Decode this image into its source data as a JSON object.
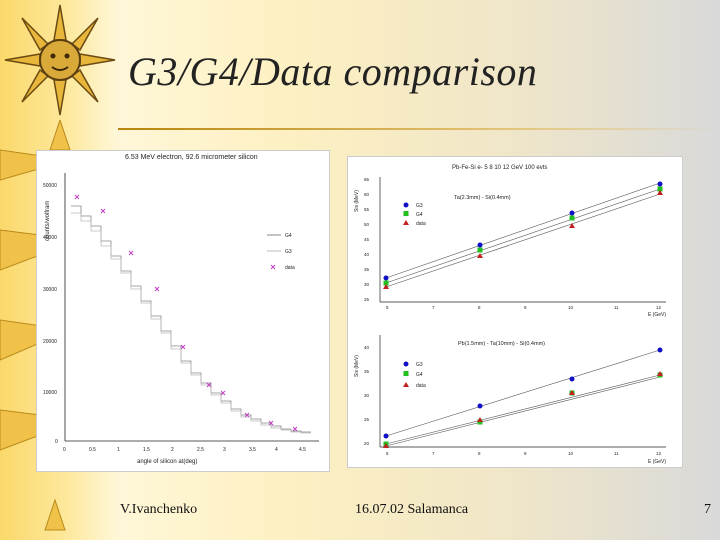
{
  "slide": {
    "title": "G3/G4/Data comparison",
    "author": "V.Ivanchenko",
    "date_place": "16.07.02 Salamanca",
    "page": "7"
  },
  "left_plot": {
    "title": "6.53 MeV electron, 92.6 micrometer silicon",
    "ylabel": "counts/wolfram",
    "xlabel": "angle of silicon at(deg)",
    "yticks": [
      "50000",
      "40000",
      "30000",
      "20000",
      "10000",
      "0"
    ],
    "xticks": [
      "0",
      "0.5",
      "1",
      "1.5",
      "2",
      "2.5",
      "3",
      "3.5",
      "4",
      "4.5"
    ],
    "legend": [
      "G4",
      "G3",
      "data"
    ]
  },
  "right_top": {
    "title": "Pb-Fe-Si  e- 5 8 10 12 GeV  100 evts",
    "subtitle": "Ta(2.3mm) - Si(0.4mm)",
    "ylabel": "Sis (MeV)",
    "xlabel": "E (GeV)",
    "legend": [
      "G3",
      "G4",
      "data"
    ],
    "yticks": [
      "65",
      "60",
      "55",
      "50",
      "45",
      "40",
      "35",
      "30",
      "25"
    ],
    "xticks": [
      "5",
      "7",
      "8",
      "9",
      "10",
      "11",
      "12"
    ]
  },
  "right_bottom": {
    "title": "Pb(1.5mm) - Ta(10mm) - Si(0.4mm)",
    "ylabel": "Sis (MeV)",
    "xlabel": "E (GeV)",
    "legend": [
      "G3",
      "G4",
      "data"
    ],
    "yticks": [
      "40",
      "35",
      "30",
      "25",
      "20"
    ],
    "xticks": [
      "5",
      "7",
      "8",
      "9",
      "10",
      "11",
      "12"
    ]
  },
  "colors": {
    "g3": "#1010c8",
    "g4": "#20c020",
    "data": "#c02020",
    "data_x": "#d040d0"
  }
}
